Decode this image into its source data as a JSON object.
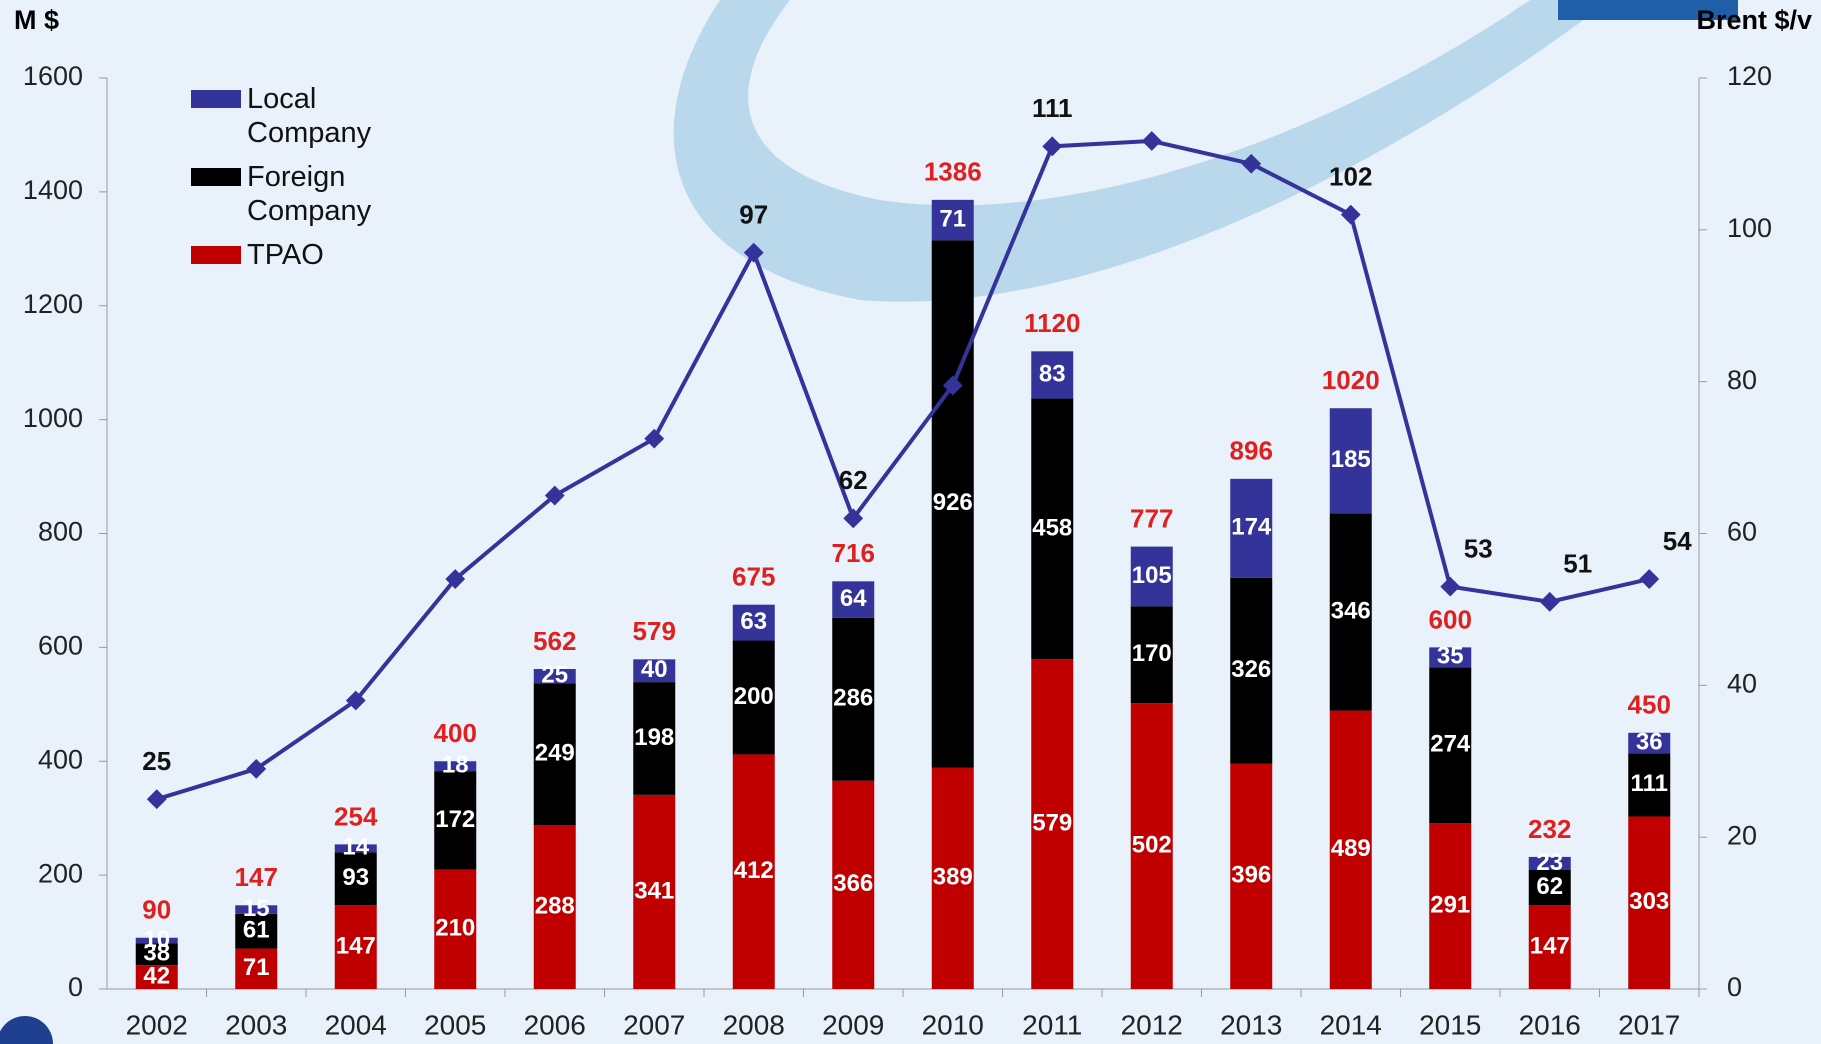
{
  "chart_data": {
    "type": "bar",
    "stacked": true,
    "y_axis_title": "M $",
    "y2_axis_title": "Brent $/v",
    "categories": [
      "2002",
      "2003",
      "2004",
      "2005",
      "2006",
      "2007",
      "2008",
      "2009",
      "2010",
      "2011",
      "2012",
      "2013",
      "2014",
      "2015",
      "2016",
      "2017"
    ],
    "series": [
      {
        "name": "TPAO",
        "color": "#c00000",
        "values": [
          42,
          71,
          147,
          210,
          288,
          341,
          412,
          366,
          389,
          579,
          502,
          396,
          489,
          291,
          147,
          303
        ]
      },
      {
        "name": "Foreign Company",
        "color": "#000000",
        "values": [
          38,
          61,
          93,
          172,
          249,
          198,
          200,
          286,
          926,
          458,
          170,
          326,
          346,
          274,
          62,
          111
        ]
      },
      {
        "name": "Local Company",
        "color": "#333399",
        "values": [
          10,
          15,
          14,
          18,
          25,
          40,
          63,
          64,
          71,
          83,
          105,
          174,
          185,
          35,
          23,
          36
        ]
      },
      {
        "name": "Brent",
        "type": "line",
        "axis": "y2",
        "color": "#333399",
        "values": [
          25,
          29,
          38,
          54,
          65,
          72.5,
          97,
          62,
          79.5,
          111,
          111.7,
          108.7,
          102,
          53,
          51,
          54
        ],
        "value_labels": [
          "25",
          null,
          null,
          null,
          null,
          null,
          "97",
          "62",
          null,
          "111",
          null,
          null,
          "102",
          "53",
          "51",
          "54"
        ]
      }
    ],
    "totals": [
      90,
      147,
      254,
      400,
      562,
      579,
      675,
      716,
      1386,
      1120,
      777,
      896,
      1020,
      600,
      232,
      450
    ],
    "ylim": [
      0,
      1600
    ],
    "yticks": [
      0,
      200,
      400,
      600,
      800,
      1000,
      1200,
      1400,
      1600
    ],
    "y2lim": [
      0,
      120
    ],
    "y2ticks": [
      0,
      20,
      40,
      60,
      80,
      100,
      120
    ]
  }
}
